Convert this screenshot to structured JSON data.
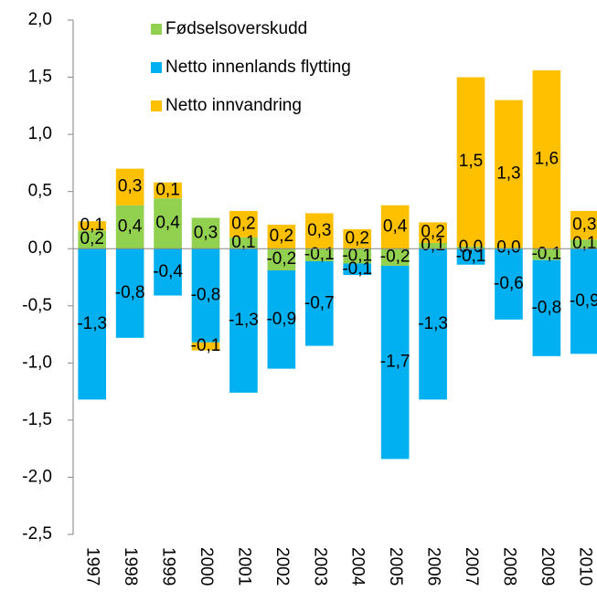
{
  "chart_data": {
    "type": "stacked-bar",
    "categories": [
      "1997",
      "1998",
      "1999",
      "2000",
      "2001",
      "2002",
      "2003",
      "2004",
      "2005",
      "2006",
      "2007",
      "2008",
      "2009",
      "2010"
    ],
    "series": [
      {
        "name": "Fødselsoverskudd",
        "color": "#92d050",
        "values": [
          0.16,
          0.38,
          0.44,
          0.27,
          0.1,
          -0.19,
          -0.11,
          -0.13,
          -0.15,
          0.05,
          0.02,
          0.01,
          -0.1,
          0.08
        ],
        "value_labels": [
          "0,2",
          "0,4",
          "0,4",
          "0,3",
          "0,1",
          "-0,2",
          "-0,1",
          "-0,1",
          "-0,2",
          "0,1",
          "0,0",
          "0,0",
          "-0,1",
          "0,1"
        ]
      },
      {
        "name": "Netto innenlands flytting",
        "color": "#00b0f0",
        "values": [
          -1.32,
          -0.78,
          -0.41,
          -0.82,
          -1.26,
          -0.86,
          -0.74,
          -0.1,
          -1.69,
          -1.32,
          -0.14,
          -0.62,
          -0.84,
          -0.92
        ],
        "value_labels": [
          "-1,3",
          "-0,8",
          "-0,4",
          "-0,8",
          "-1,3",
          "-0,9",
          "-0,7",
          "-0,1",
          "-1,7",
          "-1,3",
          "-0,1",
          "-0,6",
          "-0,8",
          "-0,9"
        ]
      },
      {
        "name": "Netto innvandring",
        "color": "#ffc000",
        "values": [
          0.08,
          0.32,
          0.14,
          -0.07,
          0.23,
          0.21,
          0.31,
          0.17,
          0.38,
          0.18,
          1.48,
          1.29,
          1.56,
          0.25
        ],
        "value_labels": [
          "0,1",
          "0,3",
          "0,1",
          "-0,1",
          "0,2",
          "0,2",
          "0,3",
          "0,2",
          "0,4",
          "0,2",
          "1,5",
          "1,3",
          "1,6",
          "0,3"
        ]
      }
    ],
    "ylim": [
      -2.5,
      2.0
    ],
    "yticks": [
      {
        "value": -2.5,
        "label": "-2,5"
      },
      {
        "value": -2.0,
        "label": "-2,0"
      },
      {
        "value": -1.5,
        "label": "-1,5"
      },
      {
        "value": -1.0,
        "label": "-1,0"
      },
      {
        "value": -0.5,
        "label": "-0,5"
      },
      {
        "value": 0,
        "label": "0,0"
      },
      {
        "value": 0.5,
        "label": "0,5"
      },
      {
        "value": 1.0,
        "label": "1,0"
      },
      {
        "value": 1.5,
        "label": "1,5"
      },
      {
        "value": 2.0,
        "label": "2,0"
      }
    ]
  }
}
